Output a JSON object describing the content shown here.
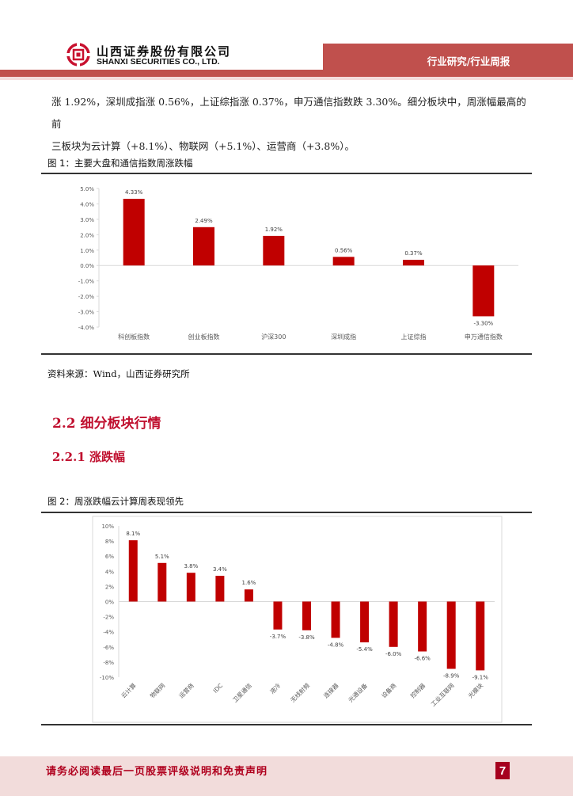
{
  "header": {
    "company_cn": "山西证券股份有限公司",
    "company_en": "SHANXI SECURITIES CO., LTD.",
    "category": "行业研究/行业周报",
    "brand_color": "#c0504d"
  },
  "body": {
    "paragraph_line1": "涨 1.92%，深圳成指涨 0.56%，上证综指涨 0.37%，申万通信指数跌 3.30%。细分板块中，周涨幅最高的前",
    "paragraph_line2": "三板块为云计算（+8.1%）、物联网（+5.1%）、运营商（+3.8%）。"
  },
  "figure1": {
    "title": "图 1：主要大盘和通信指数周涨跌幅",
    "source": "资料来源：Wind，山西证券研究所"
  },
  "section": {
    "h2": "2.2  细分板块行情",
    "h3": "2.2.1  涨跌幅"
  },
  "figure2": {
    "title": "图 2：周涨跌幅云计算周表现领先"
  },
  "footer": {
    "disclaimer": "请务必阅读最后一页股票评级说明和免责声明",
    "page_number": "7"
  },
  "chart_data": [
    {
      "type": "bar",
      "title": "图 1：主要大盘和通信指数周涨跌幅",
      "categories": [
        "科创板指数",
        "创业板指数",
        "沪深300",
        "深圳成指",
        "上证综指",
        "申万通信指数"
      ],
      "values": [
        4.33,
        2.49,
        1.92,
        0.56,
        0.37,
        -3.3
      ],
      "labels": [
        "4.33%",
        "2.49%",
        "1.92%",
        "0.56%",
        "0.37%",
        "-3.30%"
      ],
      "yticks": [
        "5.0%",
        "4.0%",
        "3.0%",
        "2.0%",
        "1.0%",
        "0.0%",
        "-1.0%",
        "-2.0%",
        "-3.0%",
        "-4.0%"
      ],
      "ylim": [
        -4.0,
        5.0
      ],
      "xlabel": "",
      "ylabel": "",
      "grid": false,
      "legend": "none",
      "bar_color": "#c00000"
    },
    {
      "type": "bar",
      "title": "图 2：周涨跌幅云计算周表现领先",
      "categories": [
        "云计算",
        "物联网",
        "运营商",
        "IDC",
        "卫星通信",
        "液冷",
        "无线射频",
        "连接器",
        "光通设备",
        "设备商",
        "控制器",
        "工业互联网",
        "光模块"
      ],
      "values": [
        8.1,
        5.1,
        3.8,
        3.4,
        1.6,
        -3.7,
        -3.8,
        -4.8,
        -5.4,
        -6.0,
        -6.6,
        -8.9,
        -9.1
      ],
      "labels": [
        "8.1%",
        "5.1%",
        "3.8%",
        "3.4%",
        "1.6%",
        "-3.7%",
        "-3.8%",
        "-4.8%",
        "-5.4%",
        "-6.0%",
        "-6.6%",
        "-8.9%",
        "-9.1%"
      ],
      "yticks": [
        "10%",
        "8%",
        "6%",
        "4%",
        "2%",
        "0%",
        "-2%",
        "-4%",
        "-6%",
        "-8%",
        "-10%"
      ],
      "ylim": [
        -10,
        10
      ],
      "xlabel": "",
      "ylabel": "",
      "grid": false,
      "legend": "none",
      "bar_color": "#c00000"
    }
  ]
}
